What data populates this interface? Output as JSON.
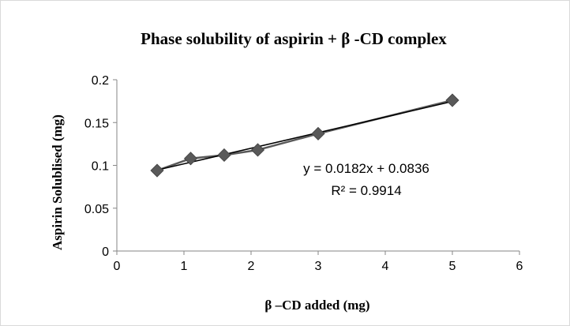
{
  "chart_data": {
    "type": "scatter",
    "title": "Phase solubility of aspirin + β -CD  complex",
    "xlabel": "β –CD added (mg)",
    "ylabel": "Aspirin Solublised (mg)",
    "xlim": [
      0,
      6
    ],
    "ylim": [
      0,
      0.2
    ],
    "x_ticks": [
      "0",
      "1",
      "2",
      "3",
      "4",
      "5",
      "6"
    ],
    "y_ticks": [
      "0",
      "0.05",
      "0.1",
      "0.15",
      "0.2"
    ],
    "grid": false,
    "legend": "none",
    "series": [
      {
        "marker": "diamond",
        "connected": true,
        "color": "#595959",
        "x": [
          0.6,
          1.1,
          1.6,
          2.1,
          3.0,
          5.0
        ],
        "y": [
          0.094,
          0.108,
          0.112,
          0.118,
          0.137,
          0.176
        ]
      }
    ],
    "trendline": {
      "type": "linear",
      "slope": 0.0182,
      "intercept": 0.0836,
      "x_range": [
        0.6,
        5.0
      ],
      "color": "#000000",
      "equation": "y = 0.0182x + 0.0836",
      "r2": "R² = 0.9914"
    }
  }
}
